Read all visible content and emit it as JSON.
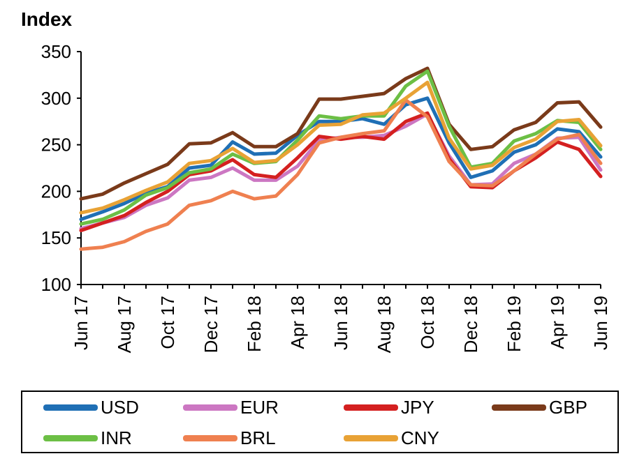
{
  "chart_data": {
    "type": "line",
    "title": "",
    "ylabel": "Index",
    "xlabel": "",
    "ylim": [
      100,
      350
    ],
    "yticks": [
      100,
      150,
      200,
      250,
      300,
      350
    ],
    "x_tick_labels": [
      "Jun 17",
      "Aug 17",
      "Oct 17",
      "Dec 17",
      "Feb 18",
      "Apr 18",
      "Jun 18",
      "Aug 18",
      "Oct 18",
      "Dec 18",
      "Feb 19",
      "Apr 19",
      "Jun 19"
    ],
    "x": [
      "Jun 17",
      "Jul 17",
      "Aug 17",
      "Sep 17",
      "Oct 17",
      "Nov 17",
      "Dec 17",
      "Jan 18",
      "Feb 18",
      "Mar 18",
      "Apr 18",
      "May 18",
      "Jun 18",
      "Jul 18",
      "Aug 18",
      "Sep 18",
      "Oct 18",
      "Nov 18",
      "Dec 18",
      "Jan 19",
      "Feb 19",
      "Mar 19",
      "Apr 19",
      "May 19",
      "Jun 19"
    ],
    "legend_position": "bottom",
    "grid": false,
    "series": [
      {
        "name": "USD",
        "color": "#1f6fb5",
        "values": [
          170,
          178,
          187,
          198,
          205,
          225,
          228,
          253,
          240,
          241,
          260,
          275,
          275,
          278,
          272,
          293,
          300,
          252,
          215,
          222,
          242,
          250,
          267,
          264,
          237
        ]
      },
      {
        "name": "EUR",
        "color": "#cc77c2",
        "values": [
          160,
          166,
          172,
          185,
          193,
          212,
          215,
          225,
          212,
          212,
          227,
          255,
          258,
          258,
          260,
          270,
          283,
          238,
          207,
          208,
          230,
          240,
          257,
          258,
          223
        ]
      },
      {
        "name": "JPY",
        "color": "#d42020",
        "values": [
          158,
          166,
          174,
          188,
          200,
          218,
          222,
          234,
          218,
          215,
          236,
          259,
          256,
          259,
          256,
          275,
          284,
          235,
          205,
          204,
          222,
          236,
          253,
          245,
          216
        ]
      },
      {
        "name": "GBP",
        "color": "#7a3a1a",
        "values": [
          192,
          197,
          209,
          219,
          229,
          251,
          252,
          263,
          248,
          248,
          262,
          299,
          299,
          302,
          305,
          321,
          332,
          272,
          245,
          248,
          266,
          274,
          295,
          296,
          269
        ]
      },
      {
        "name": "INR",
        "color": "#6cbf45",
        "values": [
          165,
          170,
          180,
          196,
          204,
          220,
          224,
          240,
          230,
          232,
          255,
          281,
          278,
          281,
          281,
          313,
          329,
          270,
          226,
          230,
          254,
          262,
          276,
          274,
          245
        ]
      },
      {
        "name": "BRL",
        "color": "#ef8050",
        "values": [
          138,
          140,
          146,
          157,
          165,
          185,
          190,
          200,
          192,
          195,
          218,
          252,
          258,
          262,
          265,
          298,
          280,
          232,
          207,
          206,
          222,
          240,
          256,
          261,
          230
        ]
      },
      {
        "name": "CNY",
        "color": "#e8a235",
        "values": [
          177,
          182,
          191,
          201,
          210,
          230,
          233,
          246,
          231,
          233,
          250,
          271,
          272,
          282,
          284,
          300,
          317,
          257,
          224,
          228,
          247,
          256,
          275,
          277,
          249
        ]
      }
    ]
  }
}
